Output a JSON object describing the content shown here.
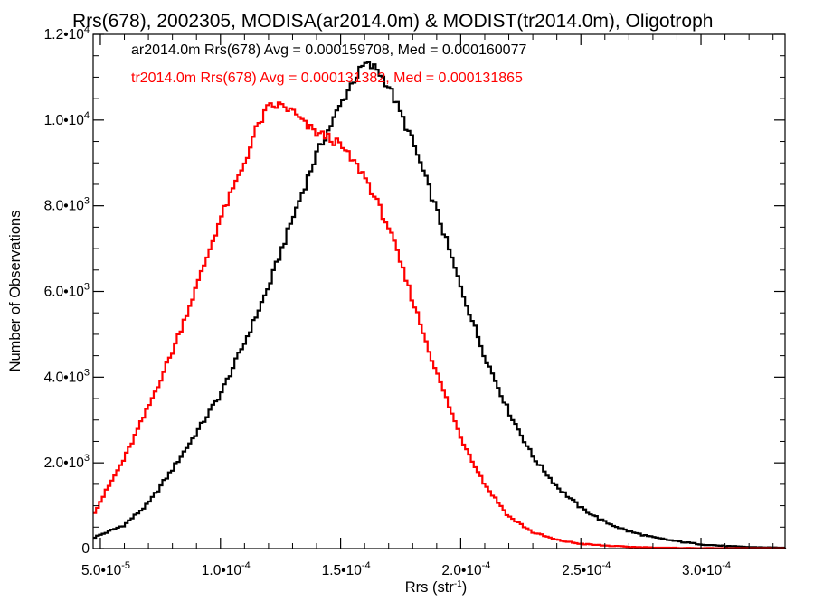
{
  "chart_data": {
    "type": "area",
    "title": "Rrs(678), 2002305, MODISA(ar2014.0m) & MODIST(tr2014.0m), Oligotroph",
    "xlabel": "Rrs (str",
    "xlabel_sup": "-1",
    "xlabel_close": ")",
    "ylabel": "Number of Observations",
    "xlim": [
      4.7e-05,
      0.000335
    ],
    "ylim": [
      0,
      12000
    ],
    "x_ticks": [
      {
        "value": 5e-05,
        "mant": "5.0•10",
        "exp": "-5"
      },
      {
        "value": 0.0001,
        "mant": "1.0•10",
        "exp": "-4"
      },
      {
        "value": 0.00015,
        "mant": "1.5•10",
        "exp": "-4"
      },
      {
        "value": 0.0002,
        "mant": "2.0•10",
        "exp": "-4"
      },
      {
        "value": 0.00025,
        "mant": "2.5•10",
        "exp": "-4"
      },
      {
        "value": 0.0003,
        "mant": "3.0•10",
        "exp": "-4"
      }
    ],
    "y_ticks": [
      {
        "value": 0,
        "mant": "0",
        "exp": ""
      },
      {
        "value": 2000,
        "mant": "2.0•10",
        "exp": "3"
      },
      {
        "value": 4000,
        "mant": "4.0•10",
        "exp": "3"
      },
      {
        "value": 6000,
        "mant": "6.0•10",
        "exp": "3"
      },
      {
        "value": 8000,
        "mant": "8.0•10",
        "exp": "3"
      },
      {
        "value": 10000,
        "mant": "1.0•10",
        "exp": "4"
      },
      {
        "value": 12000,
        "mant": "1.2•10",
        "exp": "4"
      }
    ],
    "grid": false,
    "legend_position": "top-left",
    "series": [
      {
        "name": "ar2014.0m Rrs(678) Avg = 0.000159708, Med = 0.000160077",
        "color": "#000000",
        "points": [
          [
            4.7e-05,
            250
          ],
          [
            6e-05,
            550
          ],
          [
            7e-05,
            1050
          ],
          [
            8e-05,
            1850
          ],
          [
            9e-05,
            2700
          ],
          [
            0.0001,
            3600
          ],
          [
            0.00011,
            4800
          ],
          [
            0.00012,
            6100
          ],
          [
            0.00013,
            7700
          ],
          [
            0.00014,
            9200
          ],
          [
            0.00015,
            10350
          ],
          [
            0.000155,
            10900
          ],
          [
            0.00016,
            11300
          ],
          [
            0.000165,
            11200
          ],
          [
            0.00017,
            10800
          ],
          [
            0.00018,
            9500
          ],
          [
            0.00019,
            7900
          ],
          [
            0.0002,
            6100
          ],
          [
            0.00021,
            4500
          ],
          [
            0.00022,
            3200
          ],
          [
            0.00023,
            2150
          ],
          [
            0.00024,
            1450
          ],
          [
            0.00025,
            950
          ],
          [
            0.00026,
            620
          ],
          [
            0.00027,
            400
          ],
          [
            0.00028,
            260
          ],
          [
            0.00029,
            170
          ],
          [
            0.0003,
            100
          ],
          [
            0.00031,
            60
          ],
          [
            0.00032,
            35
          ],
          [
            0.000335,
            20
          ]
        ]
      },
      {
        "name": "tr2014.0m Rrs(678) Avg = 0.000131382, Med = 0.000131865",
        "color": "#ff0000",
        "points": [
          [
            4.7e-05,
            800
          ],
          [
            5e-05,
            1100
          ],
          [
            6e-05,
            2100
          ],
          [
            7e-05,
            3300
          ],
          [
            8e-05,
            4600
          ],
          [
            9e-05,
            6100
          ],
          [
            0.0001,
            7700
          ],
          [
            0.00011,
            9000
          ],
          [
            0.000115,
            9800
          ],
          [
            0.00012,
            10300
          ],
          [
            0.000125,
            10350
          ],
          [
            0.00013,
            10200
          ],
          [
            0.000135,
            9900
          ],
          [
            0.00014,
            9700
          ],
          [
            0.000145,
            9600
          ],
          [
            0.00015,
            9400
          ],
          [
            0.00016,
            8700
          ],
          [
            0.00017,
            7500
          ],
          [
            0.00018,
            5800
          ],
          [
            0.00019,
            4100
          ],
          [
            0.0002,
            2600
          ],
          [
            0.00021,
            1500
          ],
          [
            0.00022,
            750
          ],
          [
            0.00023,
            380
          ],
          [
            0.00024,
            200
          ],
          [
            0.00025,
            110
          ],
          [
            0.00026,
            70
          ],
          [
            0.00027,
            40
          ],
          [
            0.00028,
            25
          ],
          [
            0.00029,
            15
          ],
          [
            0.0003,
            10
          ],
          [
            0.000335,
            5
          ]
        ]
      }
    ]
  }
}
